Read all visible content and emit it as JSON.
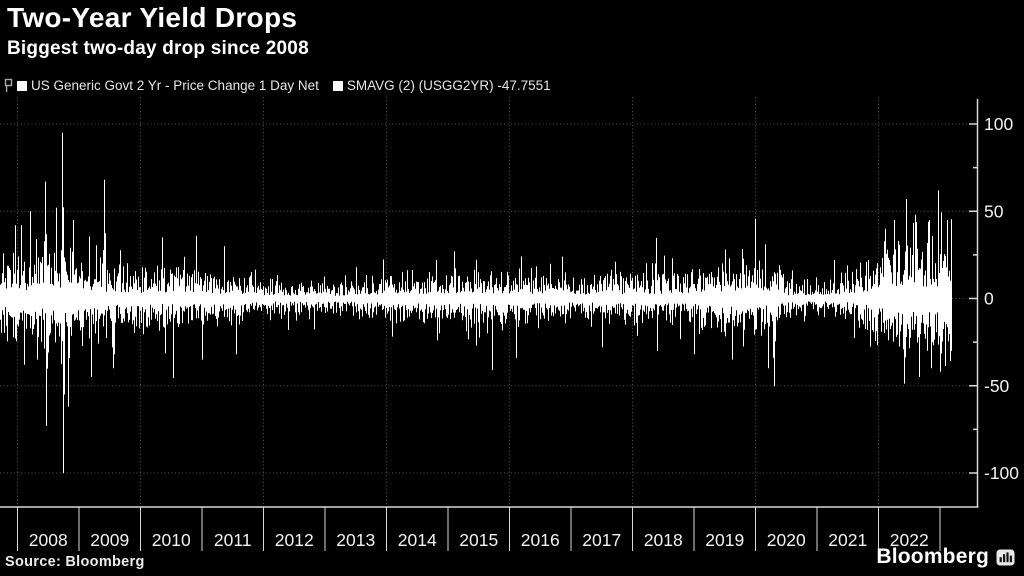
{
  "header": {
    "title": "Two-Year Yield Drops",
    "subtitle": "Biggest two-day drop since 2008"
  },
  "legend": {
    "items": [
      {
        "label": "US Generic Govt 2 Yr - Price Change 1 Day Net",
        "marker": "square",
        "marker_color": "#ffffff"
      },
      {
        "label": "SMAVG (2) (USGG2YR) -47.7551",
        "marker": "square",
        "marker_color": "#ffffff"
      }
    ]
  },
  "source": "Source: Bloomberg",
  "brand": {
    "wordmark": "Bloomberg"
  },
  "colors": {
    "background": "#000000",
    "bars": "#ffffff",
    "grid": "#555555",
    "axis": "#d9d9d9",
    "tick_labels": "#f2f2f2"
  },
  "chart_data": {
    "type": "bar",
    "title": "Two-Year Yield Drops",
    "subtitle": "Biggest two-day drop since 2008",
    "series": [
      {
        "name": "US Generic Govt 2 Yr - Price Change 1 Day Net",
        "type": "bar",
        "color": "#ffffff"
      },
      {
        "name": "SMAVG (2) (USGG2YR)",
        "type": "line",
        "color": "#ffffff",
        "last_value": -47.7551
      }
    ],
    "x_range_years": [
      2007.7,
      2023.2
    ],
    "x_tick_years": [
      2008,
      2009,
      2010,
      2011,
      2012,
      2013,
      2014,
      2015,
      2016,
      2017,
      2018,
      2019,
      2020,
      2021,
      2022
    ],
    "grid_years": [
      2008,
      2010,
      2012,
      2014,
      2016,
      2018,
      2020,
      2022
    ],
    "ylim": [
      -120,
      115
    ],
    "yticks": [
      100,
      50,
      0,
      -50,
      -100
    ],
    "y_minor_ticks": [
      75,
      25,
      -25,
      -75
    ],
    "y_axis_side": "right",
    "grid_style": "dotted",
    "volatility_envelope": [
      [
        2007.7,
        13
      ],
      [
        2008.1,
        15
      ],
      [
        2008.45,
        18
      ],
      [
        2008.75,
        21
      ],
      [
        2009.0,
        14
      ],
      [
        2009.6,
        12
      ],
      [
        2010.1,
        10
      ],
      [
        2010.6,
        11
      ],
      [
        2011.1,
        9
      ],
      [
        2011.6,
        9
      ],
      [
        2012.1,
        6
      ],
      [
        2012.6,
        5
      ],
      [
        2013.1,
        5
      ],
      [
        2013.6,
        6
      ],
      [
        2014.1,
        7
      ],
      [
        2014.6,
        9
      ],
      [
        2015.1,
        10
      ],
      [
        2015.6,
        10
      ],
      [
        2016.1,
        9
      ],
      [
        2016.6,
        8
      ],
      [
        2017.1,
        7
      ],
      [
        2017.6,
        8
      ],
      [
        2018.1,
        9
      ],
      [
        2018.6,
        9
      ],
      [
        2019.1,
        10
      ],
      [
        2019.6,
        11
      ],
      [
        2020.1,
        12
      ],
      [
        2020.3,
        12
      ],
      [
        2020.5,
        6
      ],
      [
        2021.0,
        5
      ],
      [
        2021.5,
        7
      ],
      [
        2021.8,
        11
      ],
      [
        2022.0,
        16
      ],
      [
        2022.3,
        21
      ],
      [
        2022.7,
        22
      ],
      [
        2023.0,
        21
      ],
      [
        2023.2,
        26
      ]
    ],
    "notable_spikes": [
      [
        2008.05,
        42
      ],
      [
        2008.1,
        -38
      ],
      [
        2008.2,
        50
      ],
      [
        2008.32,
        -35
      ],
      [
        2008.45,
        67
      ],
      [
        2008.47,
        -73
      ],
      [
        2008.62,
        52
      ],
      [
        2008.72,
        95
      ],
      [
        2008.74,
        -100
      ],
      [
        2008.82,
        -62
      ],
      [
        2008.9,
        45
      ],
      [
        2009.2,
        -45
      ],
      [
        2009.4,
        68
      ],
      [
        2009.55,
        -40
      ],
      [
        2010.35,
        35
      ],
      [
        2010.9,
        36
      ],
      [
        2011.0,
        -35
      ],
      [
        2011.35,
        30
      ],
      [
        2011.55,
        -32
      ],
      [
        2012.4,
        -18
      ],
      [
        2013.5,
        18
      ],
      [
        2014.8,
        22
      ],
      [
        2015.1,
        27
      ],
      [
        2015.45,
        -27
      ],
      [
        2016.1,
        -34
      ],
      [
        2016.85,
        24
      ],
      [
        2017.5,
        -28
      ],
      [
        2018.4,
        -30
      ],
      [
        2019.0,
        -32
      ],
      [
        2019.5,
        28
      ],
      [
        2019.62,
        -35
      ],
      [
        2020.15,
        31
      ],
      [
        2020.2,
        -40
      ],
      [
        2020.28,
        -34
      ],
      [
        2022.1,
        40
      ],
      [
        2022.26,
        45
      ],
      [
        2022.45,
        57
      ],
      [
        2022.6,
        48
      ],
      [
        2022.66,
        -45
      ],
      [
        2022.8,
        44
      ],
      [
        2022.86,
        -40
      ],
      [
        2023.0,
        -42
      ],
      [
        2023.12,
        45
      ],
      [
        2023.19,
        -55
      ]
    ],
    "synthesis": {
      "seed": 20080915,
      "base_fraction": 0.3,
      "tail_chance": 0.045
    }
  }
}
